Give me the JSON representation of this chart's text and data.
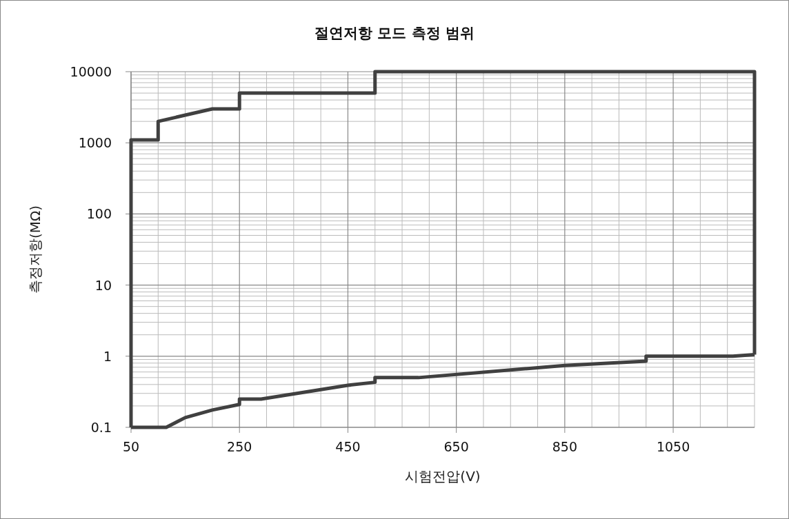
{
  "chart_data": {
    "type": "line",
    "title": "절연저항 모드 측정 범위",
    "xlabel": "시험전압(V)",
    "ylabel": "측정저항(MΩ)",
    "series": [
      {
        "color": "#404040",
        "x": [
          50,
          50,
          100,
          100,
          150,
          200,
          250,
          250,
          500,
          500,
          1200,
          1200
        ],
        "values": [
          0.1,
          1100,
          1100,
          2000,
          2450,
          3000,
          3000,
          5000,
          5000,
          10000,
          10000,
          1.05
        ]
      },
      {
        "color": "#404040",
        "x": [
          50,
          115,
          150,
          200,
          250,
          250,
          290,
          450,
          500,
          500,
          580,
          850,
          1000,
          1000,
          1160,
          1200
        ],
        "values": [
          0.1,
          0.1,
          0.137,
          0.175,
          0.21,
          0.25,
          0.25,
          0.39,
          0.43,
          0.5,
          0.5,
          0.74,
          0.85,
          1.0,
          1.0,
          1.05
        ]
      }
    ],
    "xlim": [
      50,
      1200
    ],
    "ylim": [
      0.1,
      10000
    ],
    "xticks": [
      50,
      250,
      450,
      650,
      850,
      1050
    ],
    "yticks": [
      0.1,
      1,
      10,
      100,
      1000,
      10000
    ],
    "log": "y",
    "grid": true,
    "line_style": "solid"
  }
}
